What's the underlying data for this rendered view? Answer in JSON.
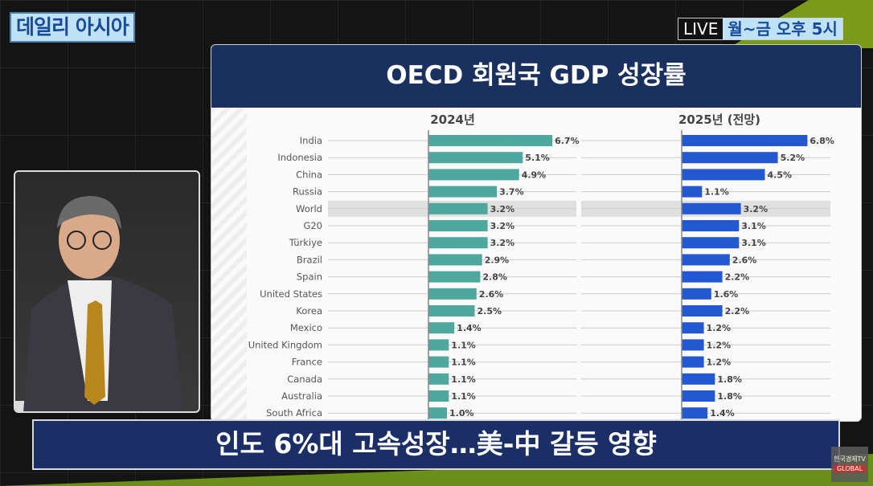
{
  "broadcast": {
    "show_title": "데일리 아시아",
    "live_label": "LIVE",
    "schedule": "월~금 오후 5시",
    "caption": "인도 6%대 고속성장…美-中 갈등 영향",
    "logo_text": "한국경제TV",
    "logo_sub": "GLOBAL"
  },
  "colors": {
    "series_2024": "#4ea89d",
    "series_2025": "#2358d0",
    "header": "#1a3160",
    "highlight_row": "#e0e0e0"
  },
  "chart_data": {
    "type": "bar",
    "orientation": "horizontal",
    "title": "OECD 회원국 GDP 성장률",
    "categories": [
      "India",
      "Indonesia",
      "China",
      "Russia",
      "World",
      "G20",
      "Türkiye",
      "Brazil",
      "Spain",
      "United States",
      "Korea",
      "Mexico",
      "United Kingdom",
      "France",
      "Canada",
      "Australia",
      "South Africa"
    ],
    "highlight": "World",
    "series": [
      {
        "name": "2024년",
        "values": [
          6.7,
          5.1,
          4.9,
          3.7,
          3.2,
          3.2,
          3.2,
          2.9,
          2.8,
          2.6,
          2.5,
          1.4,
          1.1,
          1.1,
          1.1,
          1.1,
          1.0
        ]
      },
      {
        "name": "2025년 (전망)",
        "values": [
          6.8,
          5.2,
          4.5,
          1.1,
          3.2,
          3.1,
          3.1,
          2.6,
          2.2,
          1.6,
          2.2,
          1.2,
          1.2,
          1.2,
          1.8,
          1.8,
          1.4
        ]
      }
    ],
    "value_suffix": "%",
    "grid": true
  }
}
